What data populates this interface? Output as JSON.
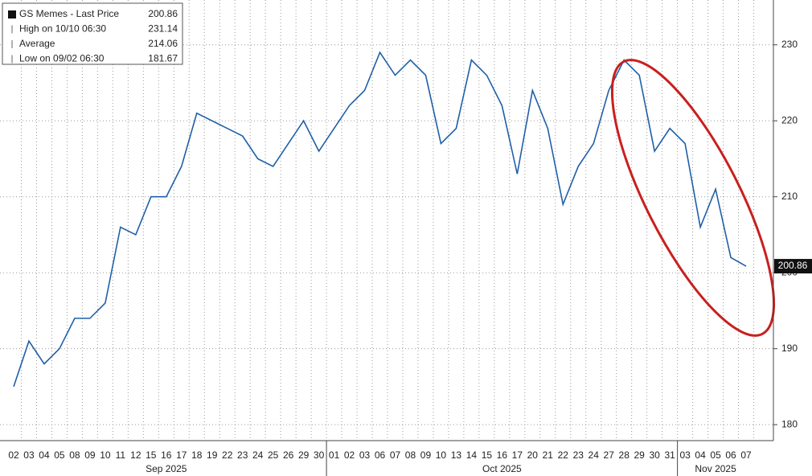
{
  "chart_data": {
    "type": "line",
    "categories": [
      "02",
      "03",
      "04",
      "05",
      "08",
      "09",
      "10",
      "11",
      "12",
      "15",
      "16",
      "17",
      "18",
      "19",
      "22",
      "23",
      "24",
      "25",
      "26",
      "29",
      "30",
      "01",
      "02",
      "03",
      "06",
      "07",
      "08",
      "09",
      "10",
      "13",
      "14",
      "15",
      "16",
      "17",
      "20",
      "21",
      "22",
      "23",
      "24",
      "27",
      "28",
      "29",
      "30",
      "31",
      "03",
      "04",
      "05",
      "06",
      "07"
    ],
    "months": [
      "Sep 2025",
      "Oct 2025",
      "Nov 2025"
    ],
    "series": [
      {
        "name": "GS Memes",
        "color": "#1f5fa8",
        "values": [
          185,
          191,
          188,
          190,
          194,
          194,
          196,
          206,
          205,
          210,
          210,
          214,
          221,
          220,
          219,
          218,
          215,
          214,
          217,
          220,
          216,
          219,
          222,
          224,
          229,
          226,
          228,
          226,
          217,
          219,
          228,
          226,
          222,
          213,
          224,
          219,
          209,
          214,
          217,
          224,
          228,
          226,
          216,
          219,
          217,
          206,
          211,
          202,
          200.86
        ]
      }
    ],
    "legend": [
      {
        "label": "GS Memes - Last Price",
        "value": 200.86
      },
      {
        "label": "High on 10/10 06:30",
        "value": 231.14
      },
      {
        "label": "Average",
        "value": 214.06
      },
      {
        "label": "Low on 09/02 06:30",
        "value": 181.67
      }
    ],
    "ylim": [
      177.9,
      235.9
    ],
    "yticks": [
      180,
      190,
      200,
      210,
      220,
      230
    ],
    "grid": true
  }
}
